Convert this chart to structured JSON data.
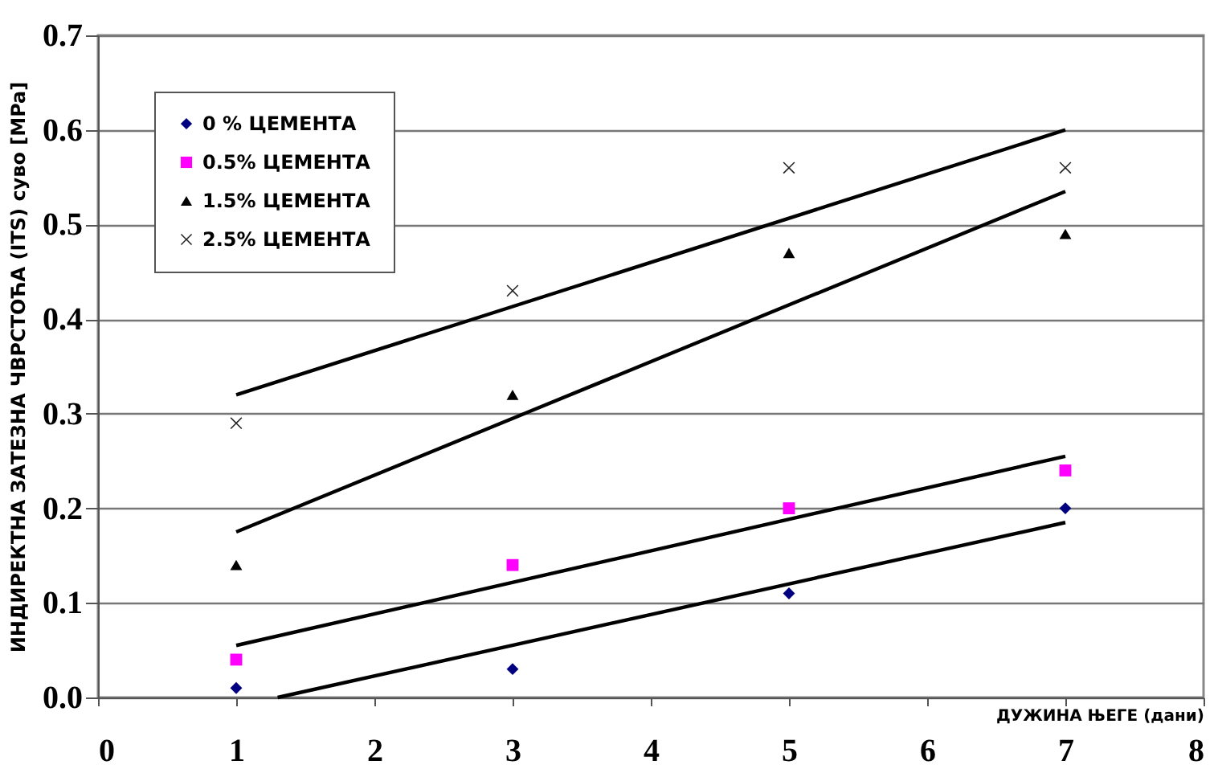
{
  "chart_data": {
    "type": "scatter",
    "xlabel": "ДУЖИНА ЊЕГЕ (дани)",
    "ylabel": "ИНДИРЕКТНА ЗАТЕЗНА ЧВРСТОЋА (ITS) суво [MPa]",
    "x": [
      1,
      3,
      5,
      7
    ],
    "series": [
      {
        "name": "0 % ЦЕМЕНТА",
        "color": "#000080",
        "marker": "diamond",
        "values": [
          0.01,
          0.03,
          0.11,
          0.2
        ]
      },
      {
        "name": "0.5% ЦЕМЕНТА",
        "color": "#ff00ff",
        "marker": "square",
        "values": [
          0.04,
          0.14,
          0.2,
          0.24
        ]
      },
      {
        "name": "1.5% ЦЕМЕНТА",
        "color": "#000000",
        "marker": "triangle",
        "values": [
          0.14,
          0.32,
          0.47,
          0.49
        ]
      },
      {
        "name": "2.5% ЦЕМЕНТА",
        "color": "#222222",
        "marker": "cross",
        "values": [
          0.29,
          0.43,
          0.56,
          0.56
        ]
      },
      {
        "type": "line",
        "color": "#000000",
        "x": [
          1,
          7
        ],
        "values": [
          0.32,
          0.6
        ]
      },
      {
        "type": "line",
        "color": "#000000",
        "x": [
          1,
          7
        ],
        "values": [
          0.175,
          0.535
        ]
      },
      {
        "type": "line",
        "color": "#000000",
        "x": [
          1,
          7
        ],
        "values": [
          0.055,
          0.255
        ]
      },
      {
        "type": "line",
        "color": "#000000",
        "x": [
          1.3,
          7
        ],
        "values": [
          0,
          0.185
        ]
      }
    ],
    "xlim": [
      0,
      8
    ],
    "xticks": [
      0,
      1,
      2,
      3,
      4,
      5,
      6,
      7,
      8
    ],
    "ylim": [
      0,
      0.7
    ],
    "yticks": [
      {
        "value": 0,
        "label": "0.0"
      },
      0.1,
      0.2,
      0.3,
      0.4,
      0.5,
      0.6,
      0.7
    ],
    "grid": "y",
    "legend": "top left"
  }
}
